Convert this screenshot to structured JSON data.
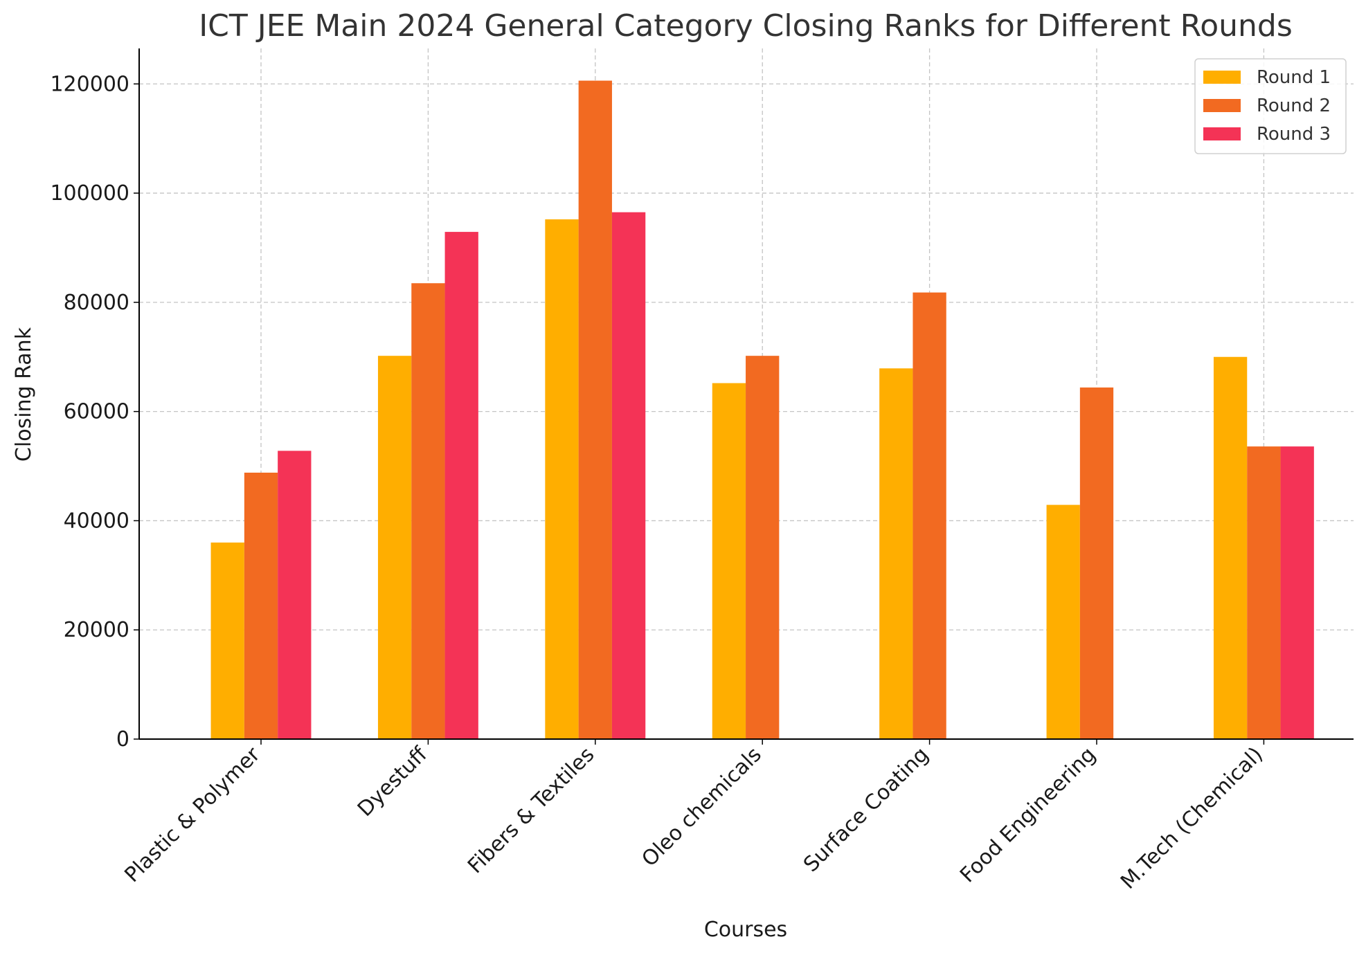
{
  "chart_data": {
    "type": "bar",
    "title": "ICT JEE Main 2024 General Category Closing Ranks for Different Rounds",
    "xlabel": "Courses",
    "ylabel": "Closing Rank",
    "categories": [
      "Plastic & Polymer",
      "Dyestuff",
      "Fibers & Textiles",
      "Oleo chemicals",
      "Surface Coating",
      "Food Engineering",
      "M.Tech (Chemical)"
    ],
    "series": [
      {
        "name": "Round 1",
        "color": "#FFAE00",
        "values": [
          36000,
          70200,
          95200,
          65200,
          67900,
          42900,
          70000
        ]
      },
      {
        "name": "Round 2",
        "color": "#F26A21",
        "values": [
          48800,
          83500,
          120600,
          70200,
          81800,
          64400,
          53600
        ]
      },
      {
        "name": "Round 3",
        "color": "#F43356",
        "values": [
          52800,
          92900,
          96500,
          null,
          null,
          null,
          53600
        ]
      }
    ],
    "ylim": [
      0,
      126500
    ],
    "yticks": [
      0,
      20000,
      40000,
      60000,
      80000,
      100000,
      120000
    ],
    "grid": true,
    "legend_position": "top-right",
    "xtick_rotation": 45
  }
}
